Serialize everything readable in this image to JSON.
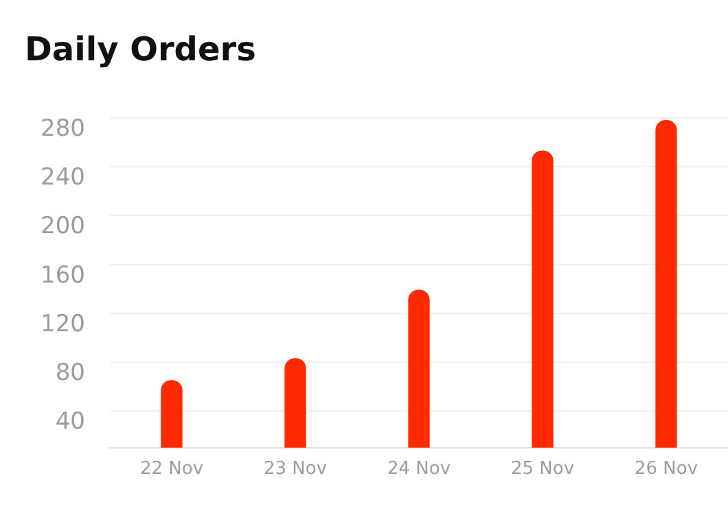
{
  "chart_data": {
    "type": "bar",
    "title": "Daily Orders",
    "categories": [
      "22 Nov",
      "23 Nov",
      "24 Nov",
      "25 Nov",
      "26 Nov"
    ],
    "values": [
      65,
      83,
      139,
      253,
      278
    ],
    "color": "#ff2a00",
    "ylim": [
      10,
      280
    ],
    "yticks": [
      40,
      80,
      120,
      160,
      200,
      240,
      280
    ],
    "grid": "y"
  }
}
